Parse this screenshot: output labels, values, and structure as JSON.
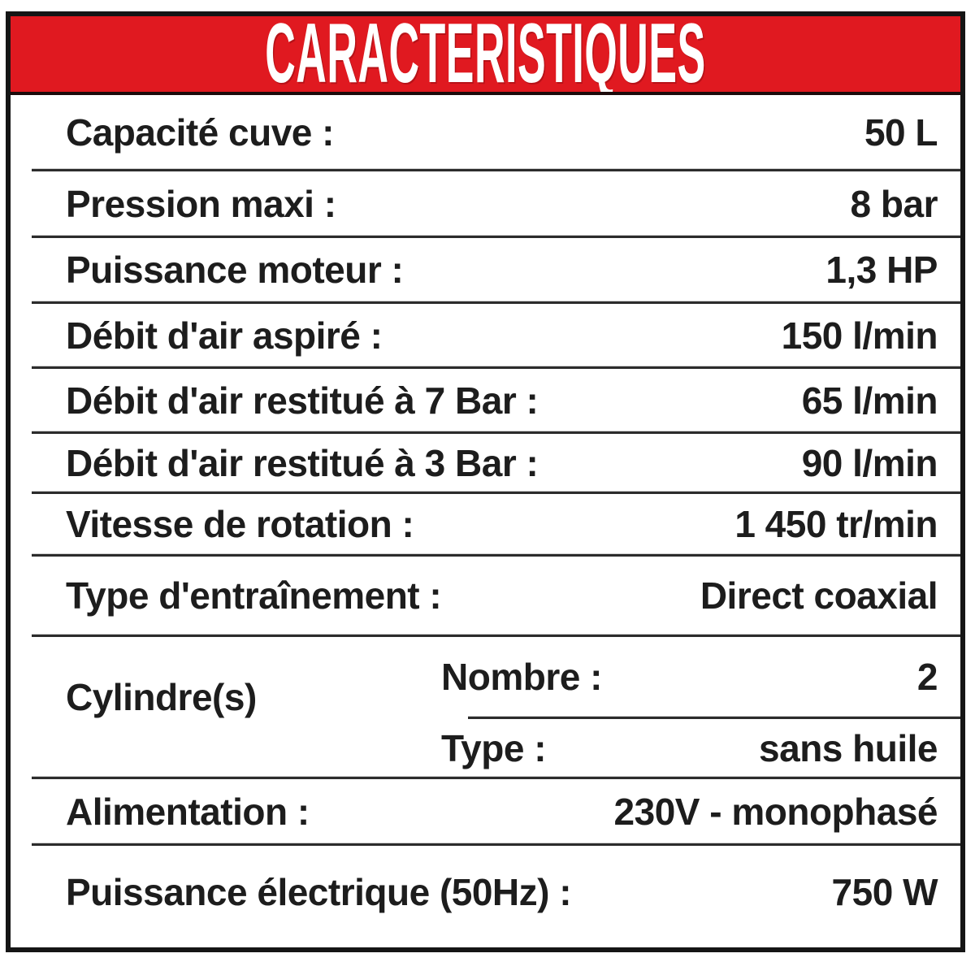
{
  "header": {
    "title": "CARACTERISTIQUES"
  },
  "colors": {
    "banner_red": "#e01920",
    "banner_title": "#ffffff",
    "frame_border": "#151515",
    "divider": "#2c2c2c",
    "text": "#1d1d1d",
    "background": "#ffffff"
  },
  "table": {
    "rows": [
      {
        "type": "simple",
        "label": "Capacité cuve :",
        "value": "50 L"
      },
      {
        "type": "simple",
        "label": "Pression maxi :",
        "value": "8 bar"
      },
      {
        "type": "simple",
        "label": "Puissance moteur :",
        "value": "1,3 HP"
      },
      {
        "type": "simple",
        "label": "Débit d'air aspiré :",
        "value": "150 l/min"
      },
      {
        "type": "simple",
        "label": "Débit d'air restitué à 7 Bar :",
        "value": "65 l/min"
      },
      {
        "type": "simple",
        "label": "Débit d'air restitué à 3 Bar :",
        "value": "90 l/min"
      },
      {
        "type": "simple",
        "label": "Vitesse de rotation :",
        "value": "1 450 tr/min"
      },
      {
        "type": "simple",
        "label": "Type d'entraînement :",
        "value": "Direct coaxial"
      },
      {
        "type": "group",
        "label": "Cylindre(s)",
        "children": [
          {
            "label": "Nombre :",
            "value": "2"
          },
          {
            "label": "Type :",
            "value": "sans huile"
          }
        ]
      },
      {
        "type": "simple",
        "label": "Alimentation :",
        "value": "230V - monophasé"
      },
      {
        "type": "simple",
        "label": "Puissance électrique (50Hz) :",
        "value": "750 W"
      }
    ]
  }
}
